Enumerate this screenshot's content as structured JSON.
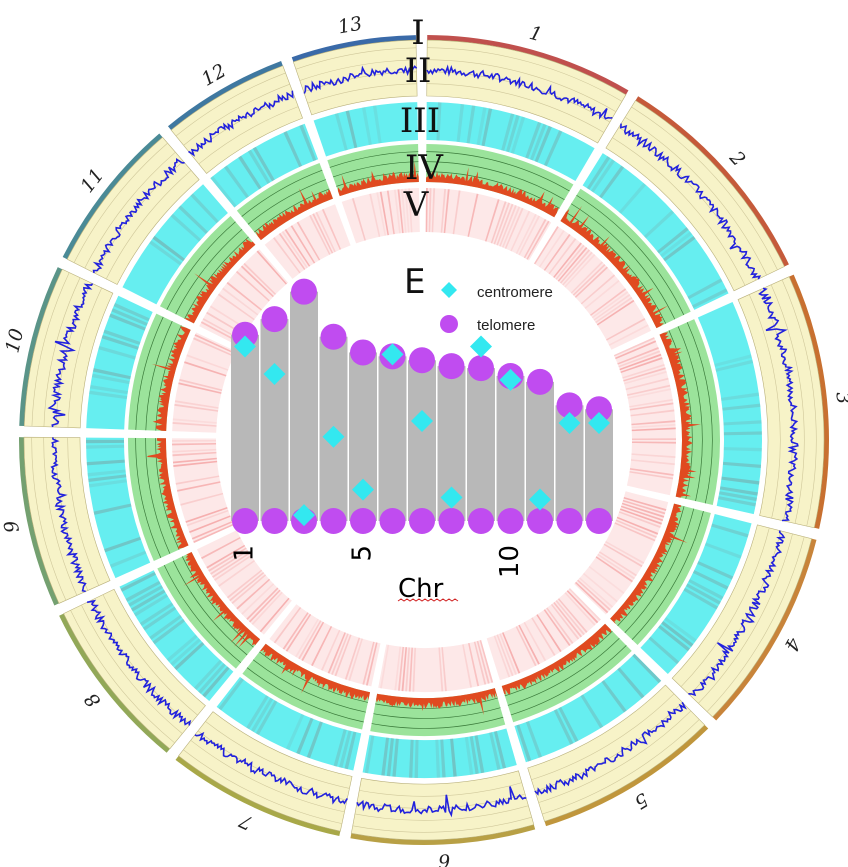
{
  "circos": {
    "chromosomes": [
      {
        "label": "1",
        "size": 9.5,
        "color": "#c0504d"
      },
      {
        "label": "2",
        "size": 10.3,
        "color": "#c55a3a"
      },
      {
        "label": "3",
        "size": 11.7,
        "color": "#c87030"
      },
      {
        "label": "4",
        "size": 9.4,
        "color": "#c8843a"
      },
      {
        "label": "5",
        "size": 8.6,
        "color": "#c0963c"
      },
      {
        "label": "6",
        "size": 8.4,
        "color": "#b8a045"
      },
      {
        "label": "7",
        "size": 8.2,
        "color": "#a8a848"
      },
      {
        "label": "8",
        "size": 7.9,
        "color": "#92a858"
      },
      {
        "label": "9",
        "size": 7.8,
        "color": "#74a070"
      },
      {
        "label": "10",
        "size": 7.4,
        "color": "#5a9488"
      },
      {
        "label": "11",
        "size": 7.1,
        "color": "#4a8a96"
      },
      {
        "label": "12",
        "size": 5.9,
        "color": "#3f78a0"
      },
      {
        "label": "13",
        "size": 5.7,
        "color": "#3a6aa8"
      }
    ],
    "tracks": [
      "I",
      "II",
      "III",
      "IV",
      "V"
    ],
    "colors": {
      "outer_band": "#f7f3c8",
      "line_track": "#2222dd",
      "heat_cyan": "#66eef0",
      "hist_bg": "#9be39b",
      "hist_bar": "#e04a20",
      "heat_red": "#f08080"
    }
  },
  "chart_data": {
    "type": "bar",
    "title": "E",
    "xlabel": "Chr",
    "ylabel": "",
    "categories": [
      "1",
      "2",
      "3",
      "4",
      "5",
      "6",
      "7",
      "8",
      "9",
      "10",
      "11",
      "12",
      "13"
    ],
    "tick_labels": [
      "1",
      "5",
      "10"
    ],
    "tick_positions": [
      1,
      5,
      10
    ],
    "lengths": [
      9.5,
      10.3,
      11.7,
      9.4,
      8.6,
      8.4,
      8.2,
      7.9,
      7.8,
      7.4,
      7.1,
      5.9,
      5.7
    ],
    "centromeres": [
      8.9,
      7.5,
      0.3,
      4.3,
      1.6,
      8.5,
      5.1,
      1.2,
      8.9,
      7.2,
      1.1,
      5.0,
      5.0
    ],
    "ylim": [
      0,
      12
    ],
    "legend": [
      {
        "label": "centromere",
        "color": "#33e8f0",
        "shape": "diamond"
      },
      {
        "label": "telomere",
        "color": "#c04cf0",
        "shape": "circle"
      }
    ],
    "colors": {
      "bar": "#b8b8b8"
    }
  }
}
